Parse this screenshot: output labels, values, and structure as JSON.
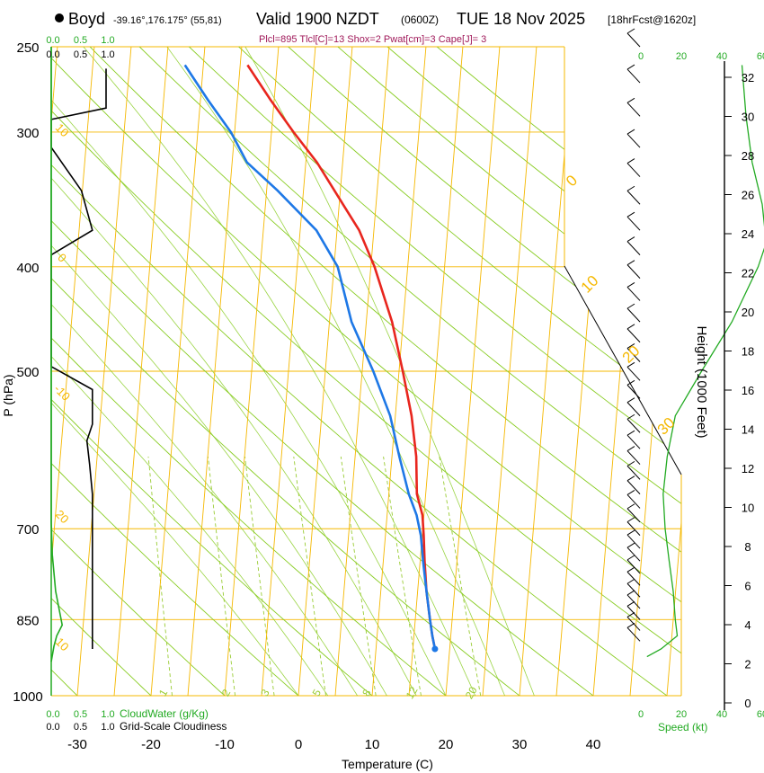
{
  "header": {
    "location_name": "Boyd",
    "location_coords": "-39.16°,176.175° (55,81)",
    "valid_title": "Valid 1900 NZDT",
    "utc_time": "(0600Z)",
    "date": "TUE 18 Nov 2025",
    "forecast_info": "[18hrFcst@1620z]",
    "indices": "Plcl=895 Tlcl[C]=13 Shox=2 Pwat[cm]=3 Cape[J]= 3"
  },
  "colors": {
    "isotherm": "#f5b800",
    "dry_adiabat": "#88cc22",
    "mixing_ratio": "#99cc33",
    "temperature": "#e8261e",
    "dewpoint": "#1e78e6",
    "cloud_water": "#22aa22",
    "indices_text": "#a0195a",
    "wind_speed_axis": "#22aa22",
    "height_axis": "#000000"
  },
  "chart_data": {
    "type": "skew-t",
    "xlabel": "Temperature (C)",
    "ylabel": "P (hPa)",
    "xlim": [
      -35,
      50
    ],
    "ylim": [
      1000,
      250
    ],
    "x_ticks": [
      -30,
      -20,
      -10,
      0,
      10,
      20,
      30,
      40
    ],
    "pressure_ticks": [
      250,
      300,
      400,
      500,
      700,
      850,
      1000
    ],
    "isotherm_labels": [
      "0",
      "10",
      "20",
      "30",
      "-10",
      "20",
      "10",
      "0",
      "0",
      "-10",
      "20",
      "10"
    ],
    "isotherm_label_temps": [
      0,
      10,
      20,
      30
    ],
    "mixing_ratio_labels": [
      "1",
      "2",
      "3",
      "5",
      "8",
      "12",
      "20"
    ],
    "temperature_profile": [
      {
        "p": 905,
        "t": 18.0
      },
      {
        "p": 880,
        "t": 17.5
      },
      {
        "p": 850,
        "t": 17.0
      },
      {
        "p": 800,
        "t": 16.2
      },
      {
        "p": 750,
        "t": 15.6
      },
      {
        "p": 710,
        "t": 15.2
      },
      {
        "p": 680,
        "t": 14.8
      },
      {
        "p": 650,
        "t": 13.8
      },
      {
        "p": 600,
        "t": 13.3
      },
      {
        "p": 550,
        "t": 12.2
      },
      {
        "p": 500,
        "t": 10.5
      },
      {
        "p": 450,
        "t": 8.5
      },
      {
        "p": 400,
        "t": 5.5
      },
      {
        "p": 370,
        "t": 3.0
      },
      {
        "p": 350,
        "t": 0.5
      },
      {
        "p": 320,
        "t": -3.5
      },
      {
        "p": 300,
        "t": -7.0
      },
      {
        "p": 280,
        "t": -10.5
      },
      {
        "p": 260,
        "t": -14.0
      }
    ],
    "dewpoint_profile": [
      {
        "p": 905,
        "t": 18.0
      },
      {
        "p": 880,
        "t": 17.5
      },
      {
        "p": 850,
        "t": 17.0
      },
      {
        "p": 800,
        "t": 16.2
      },
      {
        "p": 750,
        "t": 15.4
      },
      {
        "p": 710,
        "t": 14.8
      },
      {
        "p": 680,
        "t": 14.0
      },
      {
        "p": 650,
        "t": 12.7
      },
      {
        "p": 600,
        "t": 11.0
      },
      {
        "p": 550,
        "t": 9.3
      },
      {
        "p": 500,
        "t": 6.5
      },
      {
        "p": 450,
        "t": 3.0
      },
      {
        "p": 400,
        "t": 0.5
      },
      {
        "p": 370,
        "t": -2.8
      },
      {
        "p": 340,
        "t": -8.5
      },
      {
        "p": 320,
        "t": -13.0
      },
      {
        "p": 300,
        "t": -15.5
      },
      {
        "p": 280,
        "t": -19.0
      },
      {
        "p": 260,
        "t": -22.5
      }
    ],
    "cloud_water": {
      "label": "CloudWater (g/Kg)",
      "ticks": [
        "0.0",
        "0.5",
        "1.0"
      ],
      "xlim": [
        0,
        1
      ],
      "profile": [
        {
          "p": 250,
          "v": 0.0
        },
        {
          "p": 690,
          "v": 0.0
        },
        {
          "p": 740,
          "v": 0.02
        },
        {
          "p": 800,
          "v": 0.08
        },
        {
          "p": 860,
          "v": 0.2
        },
        {
          "p": 880,
          "v": 0.1
        },
        {
          "p": 900,
          "v": 0.05
        },
        {
          "p": 930,
          "v": 0.0
        }
      ]
    },
    "grid_scale_cloudiness": {
      "label": "Grid-Scale Cloudiness",
      "ticks": [
        "0.0",
        "0.5",
        "1.0"
      ],
      "xlim": [
        0,
        1
      ],
      "profile": [
        {
          "p": 262,
          "v": 1.0
        },
        {
          "p": 285,
          "v": 1.0
        },
        {
          "p": 292,
          "v": 0.0
        },
        {
          "p": 310,
          "v": 0.0
        },
        {
          "p": 340,
          "v": 0.55
        },
        {
          "p": 370,
          "v": 0.75
        },
        {
          "p": 390,
          "v": 0.0
        },
        {
          "p": 495,
          "v": 0.0
        },
        {
          "p": 520,
          "v": 0.75
        },
        {
          "p": 560,
          "v": 0.75
        },
        {
          "p": 580,
          "v": 0.65
        },
        {
          "p": 610,
          "v": 0.7
        },
        {
          "p": 650,
          "v": 0.75
        },
        {
          "p": 700,
          "v": 0.75
        },
        {
          "p": 905,
          "v": 0.75
        }
      ]
    },
    "wind_speed": {
      "label": "Speed (kt)",
      "ticks": [
        "0",
        "20",
        "40",
        "60"
      ],
      "xlim": [
        0,
        60
      ],
      "profile": [
        {
          "p": 920,
          "v": 3
        },
        {
          "p": 905,
          "v": 10
        },
        {
          "p": 880,
          "v": 18
        },
        {
          "p": 850,
          "v": 17
        },
        {
          "p": 800,
          "v": 16
        },
        {
          "p": 750,
          "v": 14
        },
        {
          "p": 700,
          "v": 12
        },
        {
          "p": 650,
          "v": 11
        },
        {
          "p": 600,
          "v": 13
        },
        {
          "p": 550,
          "v": 17
        },
        {
          "p": 500,
          "v": 30
        },
        {
          "p": 450,
          "v": 45
        },
        {
          "p": 400,
          "v": 58
        },
        {
          "p": 380,
          "v": 62
        },
        {
          "p": 350,
          "v": 60
        },
        {
          "p": 320,
          "v": 55
        },
        {
          "p": 290,
          "v": 52
        },
        {
          "p": 260,
          "v": 50
        }
      ],
      "barb_pressures": [
        250,
        270,
        290,
        310,
        330,
        350,
        370,
        390,
        410,
        430,
        450,
        470,
        490,
        510,
        530,
        550,
        570,
        590,
        610,
        630,
        650,
        670,
        690,
        710,
        730,
        750,
        770,
        790,
        810,
        830,
        850,
        870,
        890
      ]
    },
    "height_axis": {
      "label": "Height (1000 Feet)",
      "ticks": [
        0,
        2,
        4,
        6,
        8,
        10,
        12,
        14,
        16,
        18,
        20,
        22,
        24,
        26,
        28,
        30,
        32
      ]
    }
  }
}
